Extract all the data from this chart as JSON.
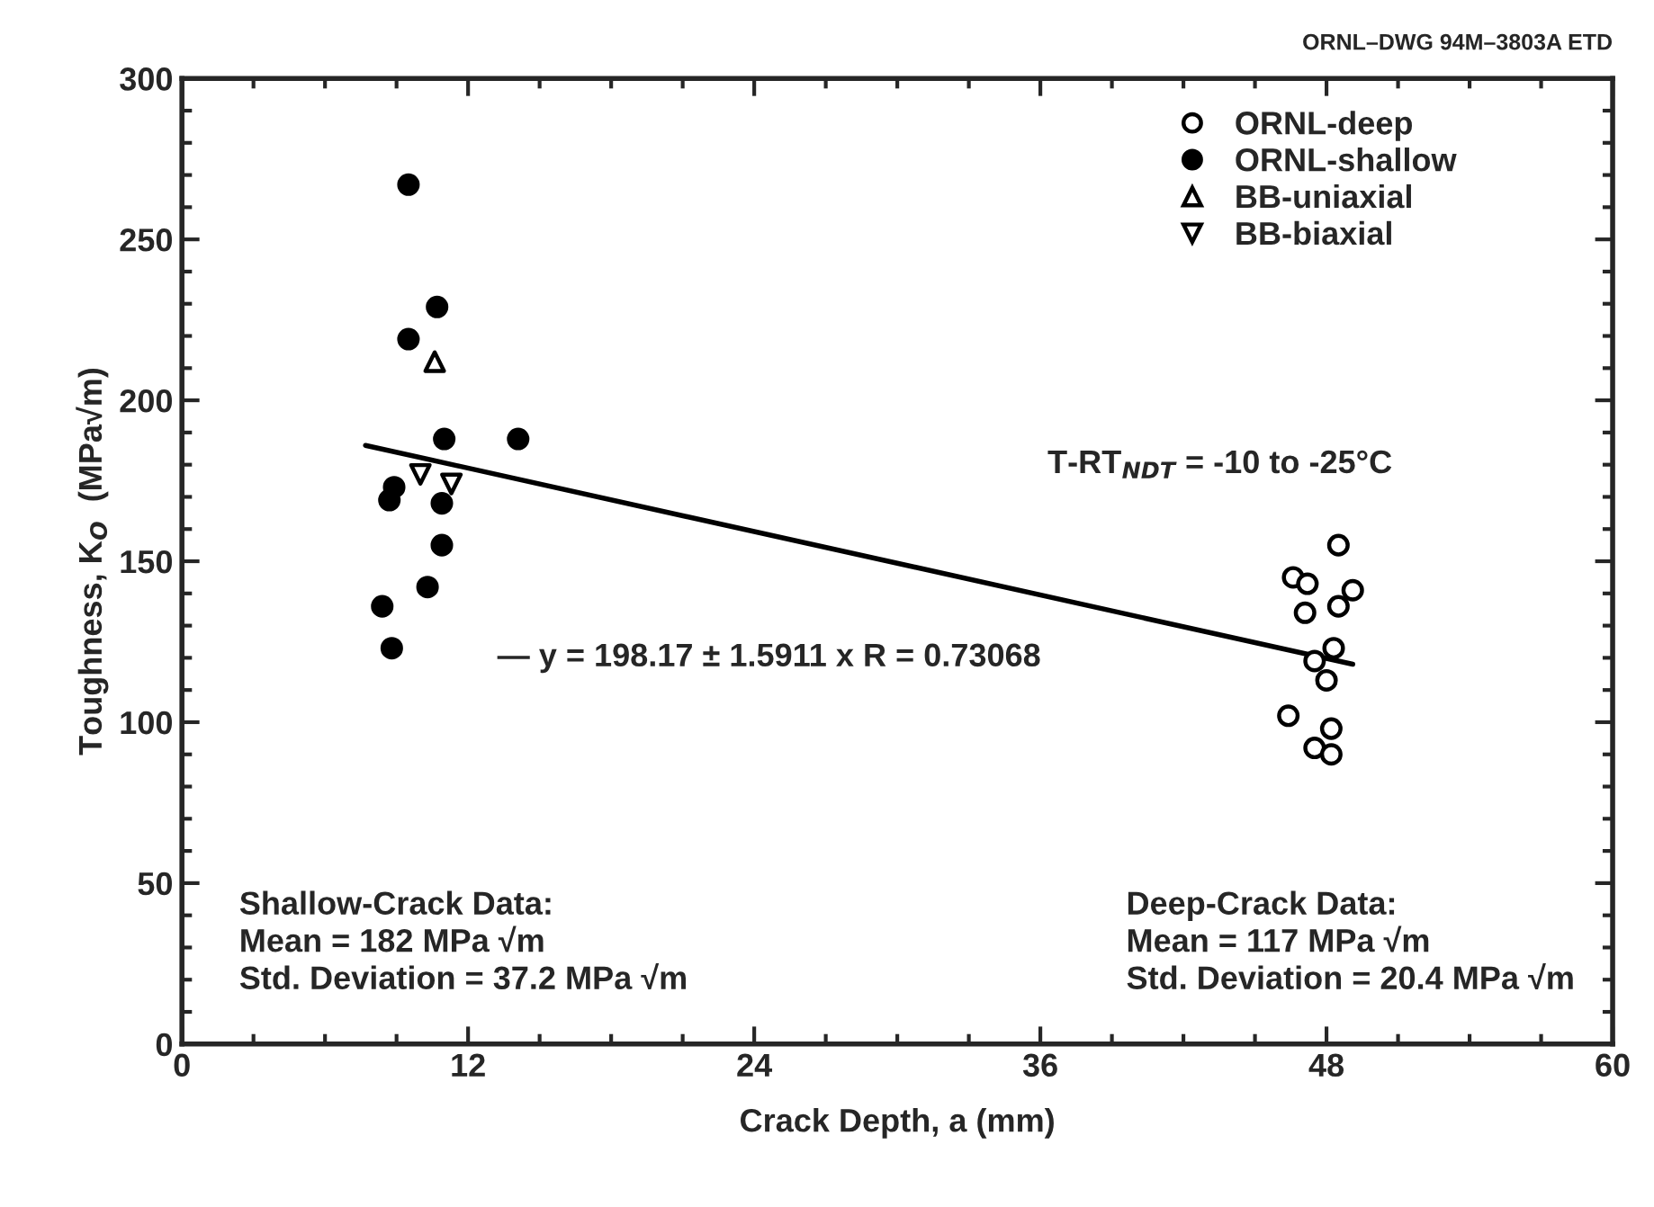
{
  "chart_data": {
    "type": "scatter",
    "xlabel": "Crack Depth, a (mm)",
    "ylabel": "Toughness, K$_{O}$  (MPa√m)",
    "xlim": [
      0,
      60
    ],
    "xticks": [
      0,
      12,
      24,
      36,
      48,
      60
    ],
    "ylim": [
      0,
      300
    ],
    "yticks": [
      0,
      50,
      100,
      150,
      200,
      250,
      300
    ],
    "grid": false,
    "legend": "top right",
    "series": [
      {
        "name": "ORNL-deep",
        "color": "#000000",
        "marker": "circle",
        "x": [
          48.5,
          46.6,
          47.2,
          49.1,
          47.1,
          48.5,
          47.5,
          48.3,
          48.0,
          46.4,
          48.2,
          47.5,
          48.2
        ],
        "values": [
          155,
          145,
          143,
          141,
          134,
          136,
          119,
          123,
          113,
          102,
          98,
          92,
          90
        ]
      },
      {
        "name": "ORNL-shallow",
        "color": "#000000",
        "marker": "circle",
        "x": [
          9.5,
          10.7,
          9.5,
          11.0,
          14.1,
          8.9,
          8.7,
          10.9,
          10.9,
          10.3,
          8.4,
          8.8
        ],
        "values": [
          267,
          229,
          219,
          188,
          188,
          173,
          169,
          168,
          155,
          142,
          136,
          123
        ]
      },
      {
        "name": "BB-uniaxial",
        "color": "#000000",
        "marker": "triangle",
        "x": [
          10.6
        ],
        "values": [
          212
        ]
      },
      {
        "name": "BB-biaxial",
        "color": "#000000",
        "marker": "triangle_down",
        "x": [
          10.0,
          11.3
        ],
        "values": [
          177,
          174
        ]
      },
      {
        "name": "— y = 198.17 ± 1.5911 x R = 0.73068",
        "type": "line",
        "color": "#000000",
        "marker": "none",
        "x": [
          7.7,
          49.1
        ],
        "values": [
          186,
          118
        ]
      }
    ],
    "annotations": [
      "ORNL–DWG 94M–3803A ETD",
      "T-RT$_{NDT}$ = -10 to -25°C",
      "Shallow-Crack Data:\nMean = 182 MPa √m\nStd. Deviation = 37.2 MPa √m",
      "Deep-Crack Data:\nMean = 117 MPa √m\nStd. Deviation = 20.4 MPa √m"
    ]
  }
}
